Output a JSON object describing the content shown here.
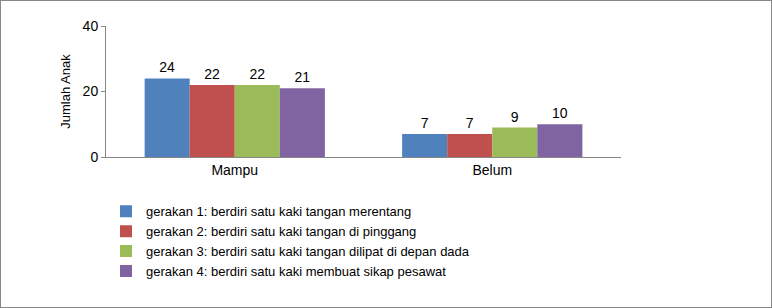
{
  "chart_data": {
    "type": "bar",
    "y_label": "Jumlah Anak",
    "categories": [
      "Mampu",
      "Belum"
    ],
    "series": [
      {
        "name": "gerakan 1: berdiri satu kaki tangan merentang",
        "color": "#4F81BD",
        "values": [
          24,
          7
        ]
      },
      {
        "name": "gerakan 2: berdiri satu kaki tangan di pinggang",
        "color": "#C0504D",
        "values": [
          22,
          7
        ]
      },
      {
        "name": "gerakan 3: berdiri satu kaki tangan dilipat di depan dada",
        "color": "#9BBB59",
        "values": [
          22,
          9
        ]
      },
      {
        "name": "gerakan 4: berdiri satu kaki membuat sikap pesawat",
        "color": "#8064A2",
        "values": [
          21,
          10
        ]
      }
    ],
    "ylim": [
      0,
      40
    ],
    "yticks": [
      0,
      20,
      40
    ],
    "grid": false,
    "data_labels": true,
    "legend": "bottom"
  }
}
